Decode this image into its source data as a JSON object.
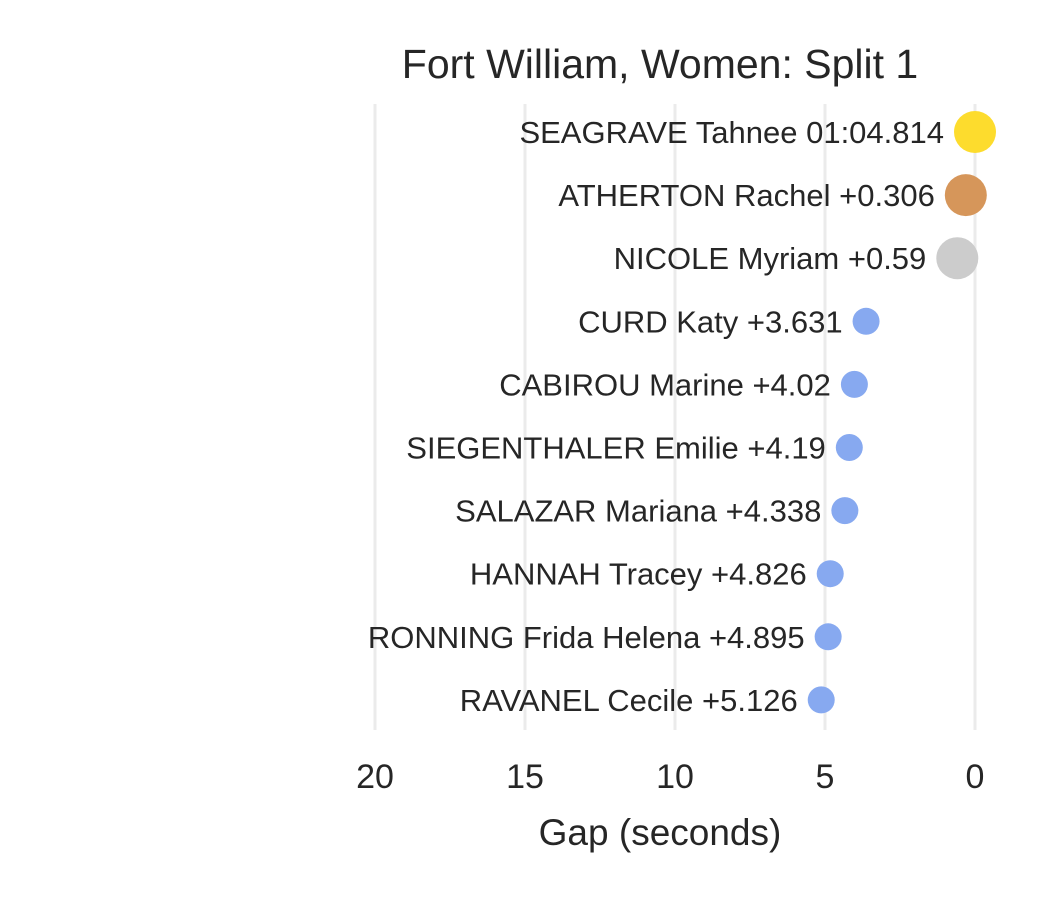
{
  "chart_data": {
    "type": "scatter",
    "title": "Fort William, Women: Split 1",
    "xlabel": "Gap (seconds)",
    "ylabel": "",
    "xlim": [
      20,
      0
    ],
    "x_reversed": true,
    "xticks": [
      20,
      15,
      10,
      5,
      0
    ],
    "grid": true,
    "riders": [
      {
        "label": "SEAGRAVE Tahnee 01:04.814",
        "gap": 0.0,
        "color": "#fddc2d",
        "size": "large"
      },
      {
        "label": "ATHERTON Rachel +0.306",
        "gap": 0.306,
        "color": "#d6965a",
        "size": "large"
      },
      {
        "label": "NICOLE Myriam +0.59",
        "gap": 0.59,
        "color": "#cccccc",
        "size": "large"
      },
      {
        "label": "CURD Katy +3.631",
        "gap": 3.631,
        "color": "#87a9f0",
        "size": "small"
      },
      {
        "label": "CABIROU Marine +4.02",
        "gap": 4.02,
        "color": "#87a9f0",
        "size": "small"
      },
      {
        "label": "SIEGENTHALER Emilie +4.19",
        "gap": 4.19,
        "color": "#87a9f0",
        "size": "small"
      },
      {
        "label": "SALAZAR Mariana +4.338",
        "gap": 4.338,
        "color": "#87a9f0",
        "size": "small"
      },
      {
        "label": "HANNAH Tracey +4.826",
        "gap": 4.826,
        "color": "#87a9f0",
        "size": "small"
      },
      {
        "label": "RONNING Frida Helena +4.895",
        "gap": 4.895,
        "color": "#87a9f0",
        "size": "small"
      },
      {
        "label": "RAVANEL Cecile +5.126",
        "gap": 5.126,
        "color": "#87a9f0",
        "size": "small"
      }
    ]
  }
}
